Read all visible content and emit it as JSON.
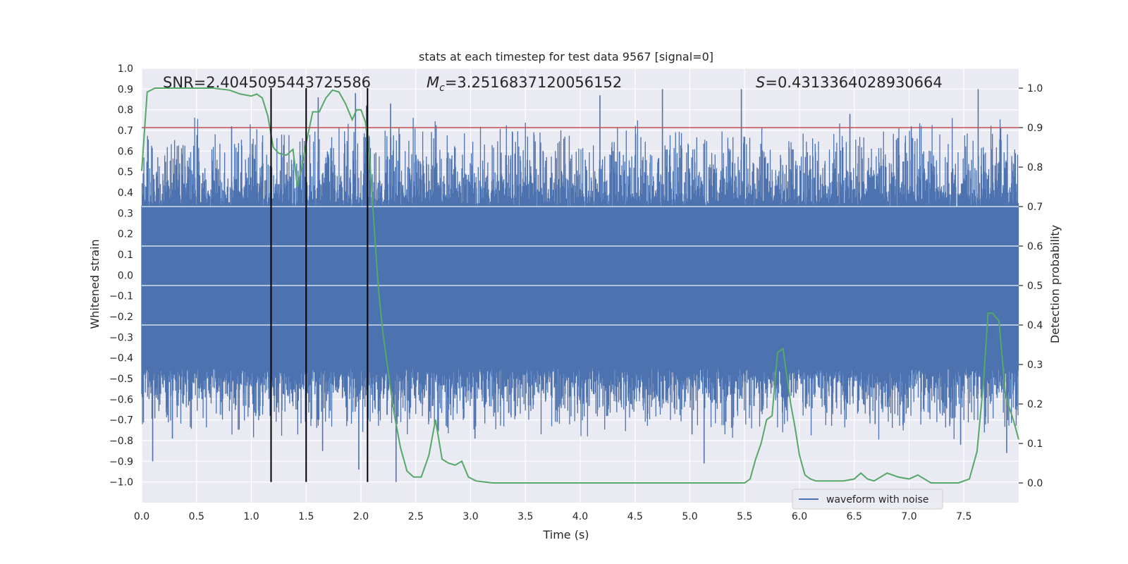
{
  "chart_data": {
    "type": "line",
    "title": "stats at each timestep for test data 9567 [signal=0]",
    "xlabel": "Time (s)",
    "ylabel": "Whitened strain",
    "y2label": "Detection probability",
    "xlim": [
      0.0,
      8.0
    ],
    "ylim": [
      -1.1,
      1.0
    ],
    "y2lim": [
      -0.05,
      1.05
    ],
    "xticks": [
      "0.0",
      "0.5",
      "1.0",
      "1.5",
      "2.0",
      "2.5",
      "3.0",
      "3.5",
      "4.0",
      "4.5",
      "5.0",
      "5.5",
      "6.0",
      "6.5",
      "7.0",
      "7.5"
    ],
    "yticks": [
      "1.0",
      "0.9",
      "0.8",
      "0.7",
      "0.6",
      "0.5",
      "0.4",
      "0.3",
      "0.2",
      "0.1",
      "0.0",
      "−0.1",
      "−0.2",
      "−0.3",
      "−0.4",
      "−0.5",
      "−0.6",
      "−0.7",
      "−0.8",
      "−0.9",
      "−1.0"
    ],
    "y2ticks": [
      "1.0",
      "0.9",
      "0.8",
      "0.7",
      "0.6",
      "0.5",
      "0.4",
      "0.3",
      "0.2",
      "0.1",
      "0.0"
    ],
    "grid": true,
    "legend_position": "lower-right",
    "annotations": {
      "snr": "SNR=2.4045095443725586",
      "mc_symbol": "M",
      "mc_sub": "c",
      "mc_value": "=3.2516837120056152",
      "s_symbol": "S",
      "s_value": "=0.4313364028930664"
    },
    "threshold": {
      "y2": 0.9,
      "color": "#c44e52"
    },
    "vlines_x": [
      1.18,
      1.5,
      2.06
    ],
    "series": [
      {
        "name": "waveform with noise",
        "color": "#4c72b0",
        "kind": "noise-waveform",
        "core_band": [
          -0.45,
          0.33
        ],
        "spikes": [
          {
            "x": 0.82,
            "y": 0.72
          },
          {
            "x": 0.85,
            "y": -0.58
          },
          {
            "x": 0.1,
            "y": -0.9
          },
          {
            "x": 0.28,
            "y": -0.79
          },
          {
            "x": 1.18,
            "y": -0.82
          },
          {
            "x": 1.61,
            "y": 0.86
          },
          {
            "x": 1.65,
            "y": -0.85
          },
          {
            "x": 1.95,
            "y": 0.88
          },
          {
            "x": 1.98,
            "y": -0.94
          },
          {
            "x": 2.05,
            "y": 0.82
          },
          {
            "x": 2.27,
            "y": 0.83
          },
          {
            "x": 2.32,
            "y": -1.0
          },
          {
            "x": 3.04,
            "y": -0.79
          },
          {
            "x": 4.18,
            "y": 0.87
          },
          {
            "x": 4.75,
            "y": 0.9
          },
          {
            "x": 5.02,
            "y": -0.77
          },
          {
            "x": 5.13,
            "y": -0.91
          },
          {
            "x": 5.47,
            "y": 0.9
          },
          {
            "x": 5.82,
            "y": -0.25
          },
          {
            "x": 6.46,
            "y": 0.78
          },
          {
            "x": 7.02,
            "y": 0.72
          },
          {
            "x": 7.47,
            "y": -0.82
          },
          {
            "x": 7.63,
            "y": 0.9
          },
          {
            "x": 7.89,
            "y": -0.86
          },
          {
            "x": 3.79,
            "y": -0.71
          },
          {
            "x": 4.25,
            "y": -0.68
          },
          {
            "x": 6.69,
            "y": -0.72
          },
          {
            "x": 2.8,
            "y": -0.65
          },
          {
            "x": 1.42,
            "y": -0.65
          },
          {
            "x": 0.55,
            "y": -0.6
          }
        ]
      },
      {
        "name": "detection probability",
        "color": "#55a868",
        "axis": "right",
        "x": [
          0.0,
          0.05,
          0.12,
          0.2,
          0.35,
          0.5,
          0.65,
          0.8,
          0.9,
          1.0,
          1.05,
          1.1,
          1.15,
          1.2,
          1.25,
          1.32,
          1.38,
          1.42,
          1.46,
          1.5,
          1.56,
          1.62,
          1.68,
          1.74,
          1.8,
          1.86,
          1.92,
          1.96,
          2.0,
          2.04,
          2.08,
          2.12,
          2.16,
          2.2,
          2.25,
          2.3,
          2.36,
          2.42,
          2.48,
          2.55,
          2.62,
          2.68,
          2.74,
          2.8,
          2.86,
          2.92,
          2.98,
          3.05,
          3.2,
          3.5,
          4.0,
          4.5,
          5.0,
          5.3,
          5.5,
          5.55,
          5.6,
          5.65,
          5.7,
          5.75,
          5.8,
          5.85,
          5.88,
          5.92,
          5.96,
          6.0,
          6.05,
          6.1,
          6.15,
          6.2,
          6.3,
          6.4,
          6.5,
          6.56,
          6.62,
          6.68,
          6.74,
          6.8,
          6.9,
          7.0,
          7.08,
          7.14,
          7.2,
          7.3,
          7.45,
          7.55,
          7.62,
          7.68,
          7.72,
          7.76,
          7.82,
          7.88,
          7.95,
          8.0
        ],
        "y": [
          0.79,
          0.99,
          1.0,
          1.0,
          1.0,
          1.0,
          1.0,
          0.995,
          0.985,
          0.98,
          0.985,
          0.975,
          0.93,
          0.85,
          0.835,
          0.83,
          0.845,
          0.75,
          0.8,
          0.86,
          0.94,
          0.94,
          0.975,
          0.995,
          0.99,
          0.96,
          0.92,
          0.945,
          0.945,
          0.915,
          0.82,
          0.65,
          0.49,
          0.38,
          0.28,
          0.18,
          0.09,
          0.03,
          0.015,
          0.015,
          0.07,
          0.16,
          0.06,
          0.05,
          0.045,
          0.055,
          0.015,
          0.005,
          0.0,
          0.0,
          0.0,
          0.0,
          0.0,
          0.0,
          0.0,
          0.01,
          0.06,
          0.1,
          0.16,
          0.17,
          0.33,
          0.34,
          0.28,
          0.2,
          0.14,
          0.07,
          0.02,
          0.01,
          0.005,
          0.005,
          0.005,
          0.005,
          0.01,
          0.025,
          0.01,
          0.005,
          0.015,
          0.025,
          0.015,
          0.01,
          0.02,
          0.01,
          0.0,
          0.0,
          0.0,
          0.01,
          0.08,
          0.26,
          0.43,
          0.43,
          0.41,
          0.22,
          0.16,
          0.11
        ]
      }
    ]
  }
}
